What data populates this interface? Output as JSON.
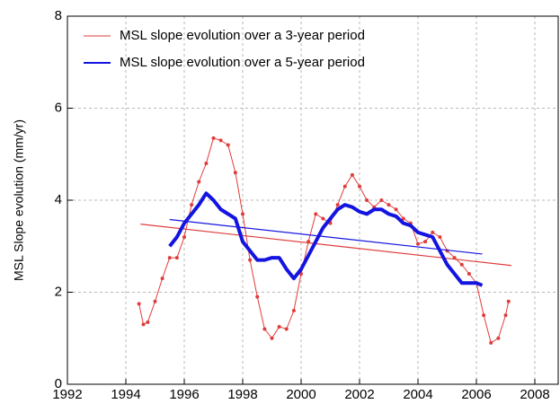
{
  "chart_data": {
    "type": "line",
    "y_label": "MSL Slope evolution (mm/yr)",
    "xlim": [
      1992,
      2008.8
    ],
    "ylim": [
      0,
      8
    ],
    "xticks": [
      1992,
      1994,
      1996,
      1998,
      2000,
      2002,
      2004,
      2006,
      2008
    ],
    "yticks": [
      0,
      2,
      4,
      6,
      8
    ],
    "grid": true,
    "legend": "top-left",
    "series": [
      {
        "name": "MSL slope evolution over a 3-year period",
        "color": "#e03c3c",
        "markers": true,
        "width": 1,
        "x": [
          1994.45,
          1994.6,
          1994.75,
          1995.0,
          1995.25,
          1995.5,
          1995.75,
          1996.0,
          1996.25,
          1996.5,
          1996.75,
          1997.0,
          1997.25,
          1997.5,
          1997.75,
          1998.0,
          1998.25,
          1998.5,
          1998.75,
          1999.0,
          1999.25,
          1999.5,
          1999.75,
          2000.0,
          2000.25,
          2000.5,
          2000.75,
          2001.0,
          2001.25,
          2001.5,
          2001.75,
          2002.0,
          2002.25,
          2002.5,
          2002.75,
          2003.0,
          2003.25,
          2003.5,
          2003.75,
          2004.0,
          2004.25,
          2004.5,
          2004.75,
          2005.0,
          2005.25,
          2005.5,
          2005.75,
          2006.0,
          2006.25,
          2006.5,
          2006.75,
          2007.0,
          2007.1
        ],
        "values": [
          1.75,
          1.3,
          1.35,
          1.8,
          2.3,
          2.75,
          2.75,
          3.2,
          3.9,
          4.4,
          4.8,
          5.35,
          5.3,
          5.2,
          4.6,
          3.7,
          2.7,
          1.9,
          1.2,
          1.0,
          1.25,
          1.2,
          1.6,
          2.4,
          3.1,
          3.7,
          3.6,
          3.5,
          3.9,
          4.3,
          4.55,
          4.3,
          4.0,
          3.85,
          4.0,
          3.9,
          3.8,
          3.6,
          3.5,
          3.05,
          3.1,
          3.3,
          3.2,
          2.9,
          2.75,
          2.6,
          2.4,
          2.2,
          1.5,
          0.9,
          1.0,
          1.5,
          1.8
        ],
        "trend": {
          "x": [
            1994.5,
            2007.2
          ],
          "values": [
            3.48,
            2.58
          ]
        }
      },
      {
        "name": "MSL slope evolution over a 5-year period",
        "color": "#1414e0",
        "markers": false,
        "width": 4,
        "x": [
          1995.5,
          1995.75,
          1996.0,
          1996.25,
          1996.5,
          1996.75,
          1997.0,
          1997.25,
          1997.5,
          1997.75,
          1998.0,
          1998.25,
          1998.5,
          1998.75,
          1999.0,
          1999.25,
          1999.5,
          1999.75,
          2000.0,
          2000.25,
          2000.5,
          2000.75,
          2001.0,
          2001.25,
          2001.5,
          2001.75,
          2002.0,
          2002.25,
          2002.5,
          2002.75,
          2003.0,
          2003.25,
          2003.5,
          2003.75,
          2004.0,
          2004.25,
          2004.5,
          2004.75,
          2005.0,
          2005.25,
          2005.5,
          2005.75,
          2006.0,
          2006.2
        ],
        "values": [
          3.0,
          3.2,
          3.5,
          3.7,
          3.9,
          4.15,
          4.0,
          3.8,
          3.7,
          3.6,
          3.1,
          2.9,
          2.7,
          2.7,
          2.75,
          2.75,
          2.5,
          2.3,
          2.5,
          2.8,
          3.1,
          3.4,
          3.6,
          3.8,
          3.9,
          3.85,
          3.75,
          3.7,
          3.8,
          3.8,
          3.7,
          3.65,
          3.5,
          3.45,
          3.3,
          3.25,
          3.2,
          2.9,
          2.6,
          2.4,
          2.2,
          2.2,
          2.2,
          2.15
        ],
        "trend": {
          "x": [
            1995.5,
            2006.2
          ],
          "values": [
            3.58,
            2.83
          ]
        }
      }
    ]
  }
}
